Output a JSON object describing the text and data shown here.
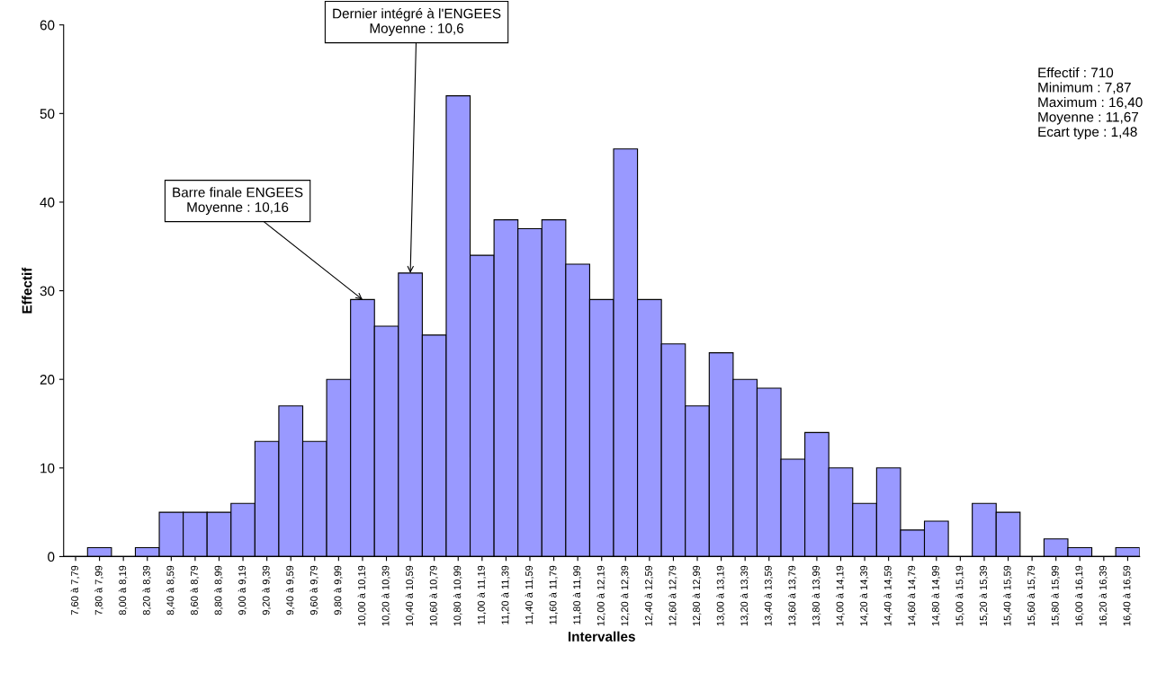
{
  "chart_data": {
    "type": "bar",
    "xlabel": "Intervalles",
    "ylabel": "Effectif",
    "categories": [
      "7,60 à 7,79",
      "7,80 à 7,99",
      "8,00 à 8,19",
      "8,20 à 8,39",
      "8,40 à 8,59",
      "8,60 à 8,79",
      "8,80 à 8,99",
      "9,00 à 9,19",
      "9,20 à 9,39",
      "9,40 à 9,59",
      "9,60 à 9,79",
      "9,80 à 9,99",
      "10,00 à 10,19",
      "10,20 à 10,39",
      "10,40 à 10,59",
      "10,60 à 10,79",
      "10,80 à 10,99",
      "11,00 à 11,19",
      "11,20 à 11,39",
      "11,40 à 11,59",
      "11,60 à 11,79",
      "11,80 à 11,99",
      "12,00 à 12,19",
      "12,20 à 12,39",
      "12,40 à 12,59",
      "12,60 à 12,79",
      "12,80 à 12,99",
      "13,00 à 13,19",
      "13,20 à 13,39",
      "13,40 à 13,59",
      "13,60 à 13,79",
      "13,80 à 13,99",
      "14,00 à 14,19",
      "14,20 à 14,39",
      "14,40 à 14,59",
      "14,60 à 14,79",
      "14,80 à 14,99",
      "15,00 à 15,19",
      "15,20 à 15,39",
      "15,40 à 15,59",
      "15,60 à 15,79",
      "15,80 à 15,99",
      "16,00 à 16,19",
      "16,20 à 16,39",
      "16,40 à 16,59"
    ],
    "values": [
      0,
      1,
      0,
      1,
      5,
      5,
      5,
      6,
      13,
      17,
      13,
      20,
      29,
      26,
      32,
      25,
      52,
      34,
      38,
      37,
      38,
      33,
      29,
      46,
      29,
      24,
      17,
      23,
      20,
      19,
      11,
      14,
      10,
      6,
      10,
      3,
      4,
      0,
      6,
      5,
      0,
      2,
      1,
      0,
      1
    ],
    "color": "#9999ff",
    "ylim": [
      0,
      60
    ],
    "yticks": [
      0,
      10,
      20,
      30,
      40,
      50,
      60
    ],
    "grid": false,
    "legend": false,
    "annotations": [
      {
        "text": "Barre finale ENGEES\nMoyenne : 10,16",
        "x": "10,00 à 10,19",
        "y": 29
      },
      {
        "text": "Dernier intégré à l'ENGEES\nMoyenne : 10,6",
        "x": "10,40 à 10,59",
        "y": 32
      },
      "Effectif : 710\nMinimum : 7,87\nMaximum : 16,40\nMoyenne : 11,67\nEcart type : 1,48"
    ]
  }
}
